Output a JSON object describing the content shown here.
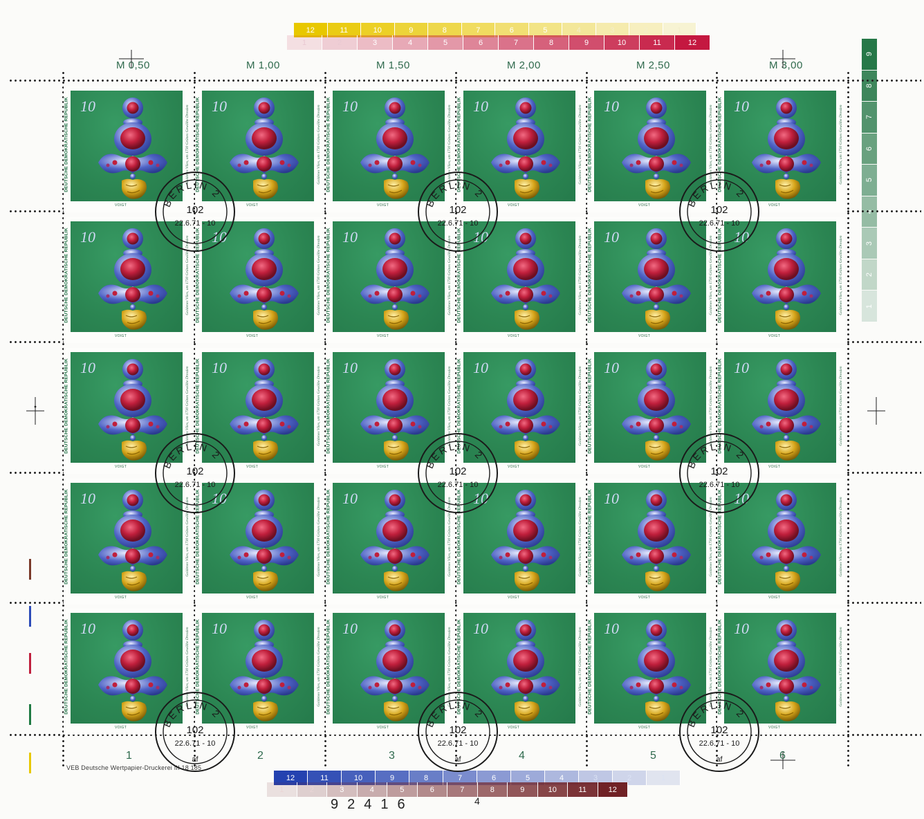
{
  "sheet": {
    "prices": [
      "M 0,50",
      "M 1,00",
      "M 1,50",
      "M 2,00",
      "M 2,50",
      "M 3,00"
    ],
    "column_numbers": [
      "1",
      "2",
      "3",
      "4",
      "5",
      "6"
    ],
    "imprint": "VEB Deutsche Wertpapier-Druckerei   III 18 185",
    "sheet_counter": "92416",
    "counter_extra": "4",
    "stamp": {
      "denomination": "10",
      "country": "DEUTSCHE DEMOKRATISCHE REPUBLIK",
      "side_text_1": "Goldenes Vlies, um 1730",
      "side_text_2": "Grünes Gewölbe Dresden",
      "designer": "VOIGT"
    },
    "postmark": {
      "city": "BERLIN 2",
      "code": "102",
      "date": "22.6.71 - 10",
      "suffix": "af"
    },
    "top_yellow_bar": [
      "12",
      "11",
      "10",
      "9",
      "8",
      "7",
      "6",
      "5",
      "4",
      "3",
      "2",
      "1"
    ],
    "top_red_bar": [
      "1",
      "2",
      "3",
      "4",
      "5",
      "6",
      "7",
      "8",
      "9",
      "10",
      "11",
      "12"
    ],
    "side_green_bar": [
      "9",
      "8",
      "7",
      "6",
      "5",
      "4",
      "3",
      "2",
      "1"
    ],
    "bottom_blue_bar": [
      "12",
      "11",
      "10",
      "9",
      "8",
      "7",
      "6",
      "5",
      "4",
      "3",
      "2",
      "1"
    ],
    "bottom_brown_bar": [
      "1",
      "2",
      "3",
      "4",
      "5",
      "6",
      "7",
      "8",
      "9",
      "10",
      "11",
      "12"
    ],
    "colors": {
      "stamp_green": "#2d8a57",
      "ruby": "#c01f3c",
      "sapphire": "#4f63c6",
      "gold": "#d6a51a",
      "margin_text": "#2f6a4d",
      "cancel_ink": "#1a1a1a"
    }
  }
}
